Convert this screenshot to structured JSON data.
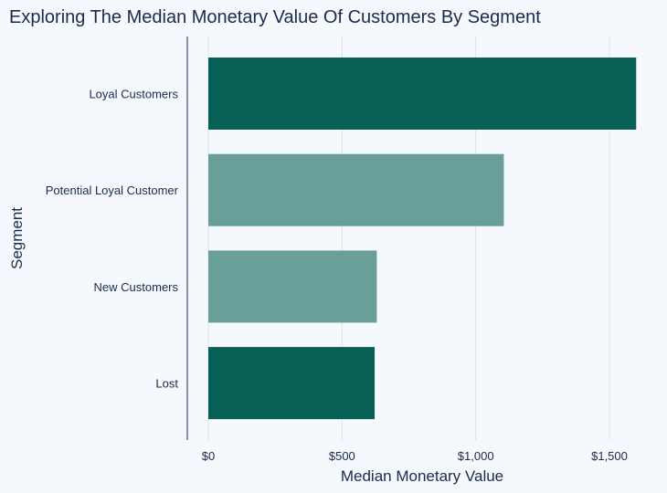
{
  "chart_data": {
    "type": "bar",
    "orientation": "horizontal",
    "title": "Exploring The Median Monetary Value Of Customers By Segment",
    "xlabel": "Median Monetary Value",
    "ylabel": "Segment",
    "categories": [
      "Loyal Customers",
      "Potential Loyal Customer",
      "New Customers",
      "Lost"
    ],
    "values": [
      1600,
      1105,
      630,
      622
    ],
    "bar_colors": [
      "#075f56",
      "#6a9e98",
      "#6a9e98",
      "#075f56"
    ],
    "xlim": [
      0,
      1700
    ],
    "x_ticks": [
      0,
      500,
      1000,
      1500
    ],
    "x_tick_labels": [
      "$0",
      "$500",
      "$1,000",
      "$1,500"
    ],
    "grid": "vertical",
    "legend": "none",
    "colors": {
      "text": "#1a2b4c",
      "grid": "#dde3ea",
      "axis": "#1a2b4c",
      "background": "#f5f8fc"
    }
  }
}
